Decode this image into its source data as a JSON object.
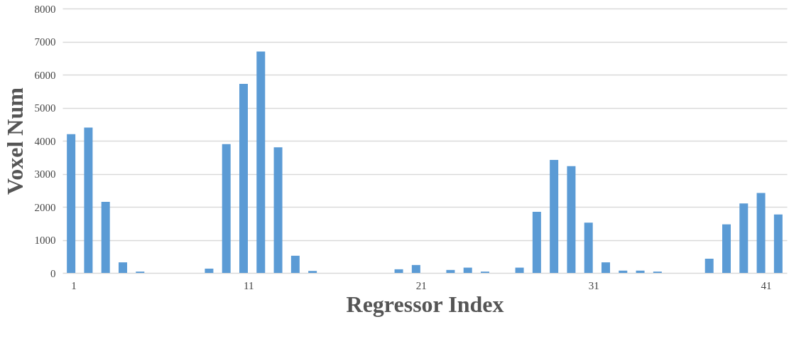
{
  "chart_data": {
    "type": "bar",
    "xlabel": "Regressor Index",
    "ylabel": "Voxel Num",
    "categories": [
      "1",
      null,
      null,
      null,
      null,
      null,
      null,
      null,
      null,
      null,
      "11",
      null,
      null,
      null,
      null,
      null,
      null,
      null,
      null,
      null,
      "21",
      null,
      null,
      null,
      null,
      null,
      null,
      null,
      null,
      null,
      "31",
      null,
      null,
      null,
      null,
      null,
      null,
      null,
      null,
      null,
      "41",
      null
    ],
    "values": [
      4200,
      4400,
      2150,
      320,
      40,
      0,
      0,
      0,
      130,
      3900,
      5720,
      6700,
      3800,
      520,
      60,
      0,
      0,
      0,
      0,
      110,
      240,
      0,
      90,
      160,
      40,
      0,
      160,
      1850,
      3420,
      3230,
      1520,
      320,
      70,
      70,
      40,
      0,
      0,
      430,
      1470,
      2100,
      2420,
      1770
    ],
    "color": "#5b9bd5",
    "ylim": [
      0,
      8000
    ],
    "yticks": [
      0,
      1000,
      2000,
      3000,
      4000,
      5000,
      6000,
      7000,
      8000
    ],
    "grid": "y"
  }
}
